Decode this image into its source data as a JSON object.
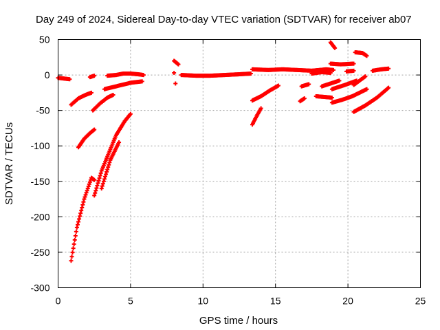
{
  "chart_data": {
    "type": "scatter",
    "title": "Day 249 of 2024, Sidereal Day-to-day VTEC variation (SDTVAR) for receiver ab07",
    "xlabel": "GPS time / hours",
    "ylabel": "SDTVAR / TECUs",
    "xlim": [
      0,
      25
    ],
    "ylim": [
      -300,
      50
    ],
    "xticks": [
      0,
      5,
      10,
      15,
      20,
      25
    ],
    "xtick_labels": [
      "0",
      "5",
      "10",
      "15",
      "20",
      "25"
    ],
    "yticks": [
      50,
      0,
      -50,
      -100,
      -150,
      -200,
      -250,
      -300
    ],
    "ytick_labels": [
      "50",
      "0",
      "-50",
      "-100",
      "-150",
      "-200",
      "-250",
      "-300"
    ],
    "grid": true,
    "marker": "plus",
    "color": "#ff0000",
    "series": [
      {
        "name": "arc-1",
        "x": [
          0.0,
          0.4,
          0.8
        ],
        "y": [
          -4,
          -5,
          -6
        ]
      },
      {
        "name": "arc-2",
        "x": [
          0.9,
          1.4,
          1.9,
          2.3
        ],
        "y": [
          -42,
          -33,
          -28,
          -25
        ]
      },
      {
        "name": "arc-3",
        "x": [
          0.9,
          1.3,
          1.8,
          2.3,
          2.5
        ],
        "y": [
          -262,
          -215,
          -175,
          -145,
          -148
        ]
      },
      {
        "name": "arc-4",
        "x": [
          1.4,
          1.8,
          2.2,
          2.5
        ],
        "y": [
          -102,
          -90,
          -82,
          -77
        ]
      },
      {
        "name": "arc-5",
        "x": [
          2.2,
          2.5
        ],
        "y": [
          -3,
          -1
        ]
      },
      {
        "name": "arc-6",
        "x": [
          2.4,
          2.9,
          3.4,
          3.8
        ],
        "y": [
          -50,
          -40,
          -32,
          -28
        ]
      },
      {
        "name": "arc-7",
        "x": [
          2.5,
          3.0,
          3.5,
          4.0,
          4.6,
          5.0
        ],
        "y": [
          -170,
          -135,
          -110,
          -85,
          -65,
          -55
        ]
      },
      {
        "name": "arc-8",
        "x": [
          3.0,
          3.6,
          4.2
        ],
        "y": [
          -160,
          -120,
          -95
        ]
      },
      {
        "name": "arc-9",
        "x": [
          3.2,
          3.8,
          4.4,
          5.0,
          5.8
        ],
        "y": [
          -20,
          -17,
          -14,
          -11,
          -9
        ]
      },
      {
        "name": "arc-10",
        "x": [
          3.4,
          4.0,
          4.5,
          5.0,
          5.5,
          5.9
        ],
        "y": [
          -1,
          0,
          2,
          2,
          1,
          0
        ]
      },
      {
        "name": "arc-11",
        "x": [
          8.0,
          8.3
        ],
        "y": [
          20,
          15
        ]
      },
      {
        "name": "arc-12",
        "x": [
          8.0
        ],
        "y": [
          3
        ]
      },
      {
        "name": "arc-13",
        "x": [
          8.1
        ],
        "y": [
          -12
        ]
      },
      {
        "name": "arc-14",
        "x": [
          8.5,
          9.5,
          10.5,
          11.5,
          12.5,
          13.3
        ],
        "y": [
          0,
          -1,
          -1,
          0,
          1,
          2
        ]
      },
      {
        "name": "arc-15",
        "x": [
          13.4,
          14.5,
          15.5,
          16.5,
          17.5,
          18.5,
          19.0
        ],
        "y": [
          8,
          7,
          8,
          7,
          6,
          8,
          7
        ]
      },
      {
        "name": "arc-16",
        "x": [
          13.4,
          13.7,
          14.0
        ],
        "y": [
          -70,
          -58,
          -47
        ]
      },
      {
        "name": "arc-17",
        "x": [
          13.4,
          14.0,
          14.6,
          15.2
        ],
        "y": [
          -36,
          -30,
          -22,
          -15
        ]
      },
      {
        "name": "arc-18",
        "x": [
          16.8,
          17.3
        ],
        "y": [
          -16,
          -13
        ]
      },
      {
        "name": "arc-19",
        "x": [
          16.7,
          17.0
        ],
        "y": [
          -37,
          -33
        ]
      },
      {
        "name": "arc-20",
        "x": [
          17.8,
          18.4,
          18.9
        ],
        "y": [
          -30,
          -31,
          -32
        ]
      },
      {
        "name": "arc-21",
        "x": [
          17.5,
          18.2,
          18.8
        ],
        "y": [
          2,
          4,
          3
        ]
      },
      {
        "name": "arc-22",
        "x": [
          18.2,
          18.8,
          19.4
        ],
        "y": [
          -16,
          -12,
          -8
        ]
      },
      {
        "name": "arc-23",
        "x": [
          18.8,
          19.1
        ],
        "y": [
          46,
          38
        ]
      },
      {
        "name": "arc-24",
        "x": [
          18.8,
          19.5,
          20.4
        ],
        "y": [
          16,
          15,
          16
        ]
      },
      {
        "name": "arc-25",
        "x": [
          18.9,
          19.6,
          20.3,
          20.9,
          21.3
        ],
        "y": [
          -39,
          -35,
          -30,
          -24,
          -20
        ]
      },
      {
        "name": "arc-26",
        "x": [
          18.9,
          19.8,
          20.6
        ],
        "y": [
          -20,
          -14,
          -8
        ]
      },
      {
        "name": "arc-27",
        "x": [
          19.9,
          20.4
        ],
        "y": [
          5,
          6
        ]
      },
      {
        "name": "arc-28",
        "x": [
          20.4,
          20.8,
          21.2
        ],
        "y": [
          -14,
          -8,
          -2
        ]
      },
      {
        "name": "arc-29",
        "x": [
          20.4,
          21.2,
          22.0,
          22.8
        ],
        "y": [
          -52,
          -43,
          -32,
          -18
        ]
      },
      {
        "name": "arc-30",
        "x": [
          20.5,
          21.0,
          21.3
        ],
        "y": [
          32,
          31,
          27
        ]
      },
      {
        "name": "arc-31",
        "x": [
          21.7,
          22.3,
          22.8
        ],
        "y": [
          6,
          8,
          9
        ]
      }
    ]
  }
}
